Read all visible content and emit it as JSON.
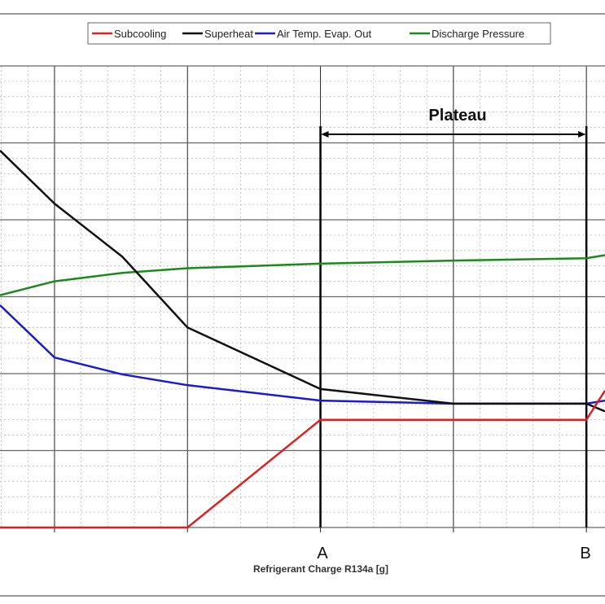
{
  "chart_data": {
    "type": "line",
    "title": "",
    "xlabel": "Refrigerant Charge R134a [g]",
    "ylabel": "",
    "xlim": [
      0.59,
      5.14
    ],
    "ylim": [
      0,
      6
    ],
    "grid": true,
    "legend_position": "top-center",
    "x_markers": [
      {
        "label": "A",
        "x": 3
      },
      {
        "label": "B",
        "x": 5
      }
    ],
    "annotation": {
      "text": "Plateau",
      "from": 3,
      "to": 5
    },
    "series": [
      {
        "name": "Subcooling",
        "color": "#e02020",
        "x": [
          0.59,
          2,
          3,
          5,
          5.14
        ],
        "y": [
          0,
          0,
          1.4,
          1.4,
          1.78
        ]
      },
      {
        "name": "Superheat",
        "color": "#111111",
        "x": [
          0.59,
          1,
          1.51,
          2,
          3,
          4,
          5,
          5.14
        ],
        "y": [
          4.9,
          4.21,
          3.52,
          2.6,
          1.8,
          1.61,
          1.61,
          1.51
        ]
      },
      {
        "name": "Air Temp. Evap. Out",
        "color": "#1a1ad0",
        "x": [
          0.59,
          1,
          1.51,
          2,
          3,
          4,
          5,
          5.14
        ],
        "y": [
          2.89,
          2.21,
          1.99,
          1.85,
          1.65,
          1.61,
          1.61,
          1.65
        ]
      },
      {
        "name": "Discharge Pressure",
        "color": "#1a8a1a",
        "x": [
          0.59,
          1,
          1.51,
          2,
          3,
          4,
          5,
          5.14
        ],
        "y": [
          3.02,
          3.2,
          3.31,
          3.37,
          3.43,
          3.47,
          3.5,
          3.54
        ]
      }
    ]
  }
}
